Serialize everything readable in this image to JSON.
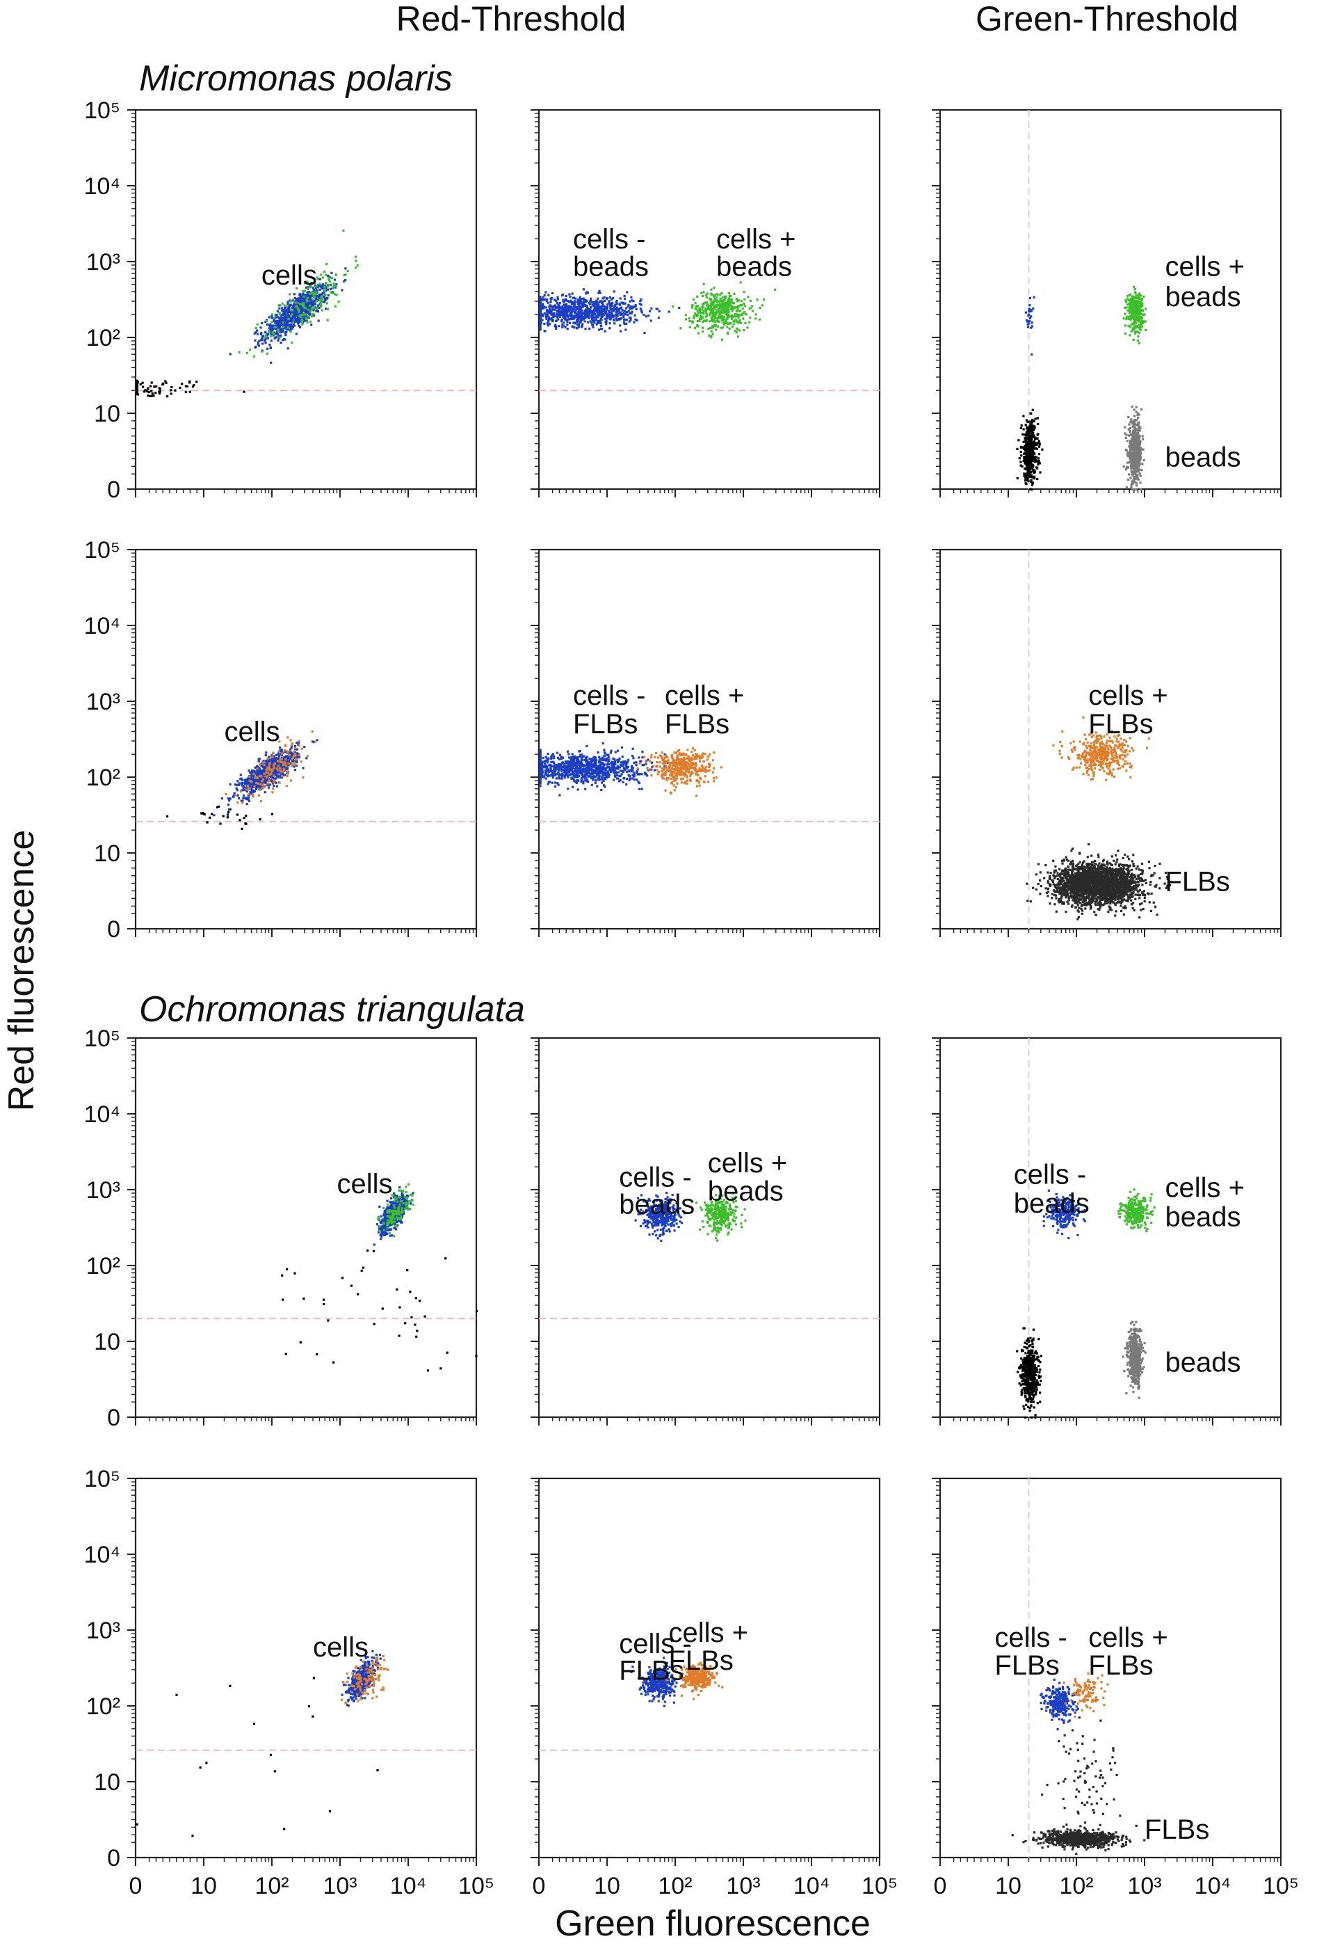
{
  "figure": {
    "column_headers": [
      "Red-Threshold",
      "Green-Threshold"
    ],
    "section_titles": [
      "Micromonas polaris",
      "Ochromonas triangulata"
    ],
    "y_axis_label": "Red fluorescence",
    "x_axis_label": "Green fluorescence"
  },
  "colors": {
    "cells_minus": "#1a3fc4",
    "beads_plus": "#3cbf2a",
    "flbs_plus": "#e07d2a",
    "beads_only": "#7a7a7a",
    "flbs_only": "#2a2a2a",
    "background_events": "#000000",
    "threshold_line": "#f0b9b9"
  },
  "chart_data": {
    "type": "scatter",
    "axis_scale": "biexponential (0, 10, 10^2 ... 10^5)",
    "x_ticks": [
      "0",
      "10",
      "10²",
      "10³",
      "10⁴",
      "10⁵"
    ],
    "y_ticks": [
      "0",
      "10",
      "10²",
      "10³",
      "10⁴",
      "10⁵"
    ],
    "xlim": [
      0,
      100000
    ],
    "ylim": [
      0,
      100000
    ],
    "grid": false,
    "panels": [
      {
        "row": 0,
        "col": 0,
        "threshold": "Red-Threshold",
        "prey": "beads",
        "hline": 20,
        "labels": [
          {
            "text": "cells",
            "x": 70,
            "y": 500
          }
        ],
        "populations": [
          {
            "name": "events",
            "color": "background_events",
            "n": 90,
            "cx": 0.5,
            "sx": 0.55,
            "cy": 22,
            "sy": 0.06
          },
          {
            "name": "cells",
            "color": "cells_minus",
            "n": 750,
            "cx": 220,
            "sx": 0.24,
            "cy": 220,
            "sy": 0.18,
            "rho": 0.82
          },
          {
            "name": "cells + beads",
            "color": "beads_plus",
            "n": 160,
            "cx": 320,
            "sx": 0.32,
            "cy": 300,
            "sy": 0.28,
            "rho": 0.8
          }
        ]
      },
      {
        "row": 0,
        "col": 1,
        "threshold": "Red-Threshold",
        "prey": "beads",
        "hline": 20,
        "labels": [
          {
            "text": "cells -",
            "x": 5,
            "y": 1500
          },
          {
            "text": "beads",
            "x": 5,
            "y": 650
          },
          {
            "text": "cells +",
            "x": 400,
            "y": 1500
          },
          {
            "text": "beads",
            "x": 400,
            "y": 650
          }
        ],
        "populations": [
          {
            "name": "cells - beads",
            "color": "cells_minus",
            "n": 900,
            "cx": 6,
            "sx": 0.45,
            "cy": 230,
            "sy": 0.1
          },
          {
            "name": "cells + beads",
            "color": "beads_plus",
            "n": 420,
            "cx": 450,
            "sx": 0.22,
            "cy": 230,
            "sy": 0.13
          }
        ]
      },
      {
        "row": 0,
        "col": 2,
        "threshold": "Green-Threshold",
        "prey": "beads",
        "vline": 20,
        "labels": [
          {
            "text": "cells +",
            "x": 2000,
            "y": 650
          },
          {
            "text": "beads",
            "x": 2000,
            "y": 260
          },
          {
            "text": "beads",
            "x": 2000,
            "y": 3
          }
        ],
        "populations": [
          {
            "name": "background",
            "color": "background_events",
            "n": 450,
            "cx": 20,
            "sx": 0.06,
            "cy": 5,
            "sy": 0.2
          },
          {
            "name": "cells",
            "color": "cells_minus",
            "n": 25,
            "cx": 20,
            "sx": 0.03,
            "cy": 180,
            "sy": 0.15
          },
          {
            "name": "beads",
            "color": "beads_only",
            "n": 450,
            "cx": 700,
            "sx": 0.05,
            "cy": 5,
            "sy": 0.2
          },
          {
            "name": "cells + beads",
            "color": "beads_plus",
            "n": 320,
            "cx": 700,
            "sx": 0.06,
            "cy": 230,
            "sy": 0.12
          }
        ]
      },
      {
        "row": 1,
        "col": 0,
        "threshold": "Red-Threshold",
        "prey": "FLBs",
        "hline": 26,
        "labels": [
          {
            "text": "cells",
            "x": 20,
            "y": 300
          }
        ],
        "populations": [
          {
            "name": "events",
            "color": "background_events",
            "n": 25,
            "cx": 20,
            "sx": 0.35,
            "cy": 30,
            "sy": 0.08
          },
          {
            "name": "cells",
            "color": "cells_minus",
            "n": 700,
            "cx": 85,
            "sx": 0.22,
            "cy": 120,
            "sy": 0.15,
            "rho": 0.8
          },
          {
            "name": "cells + FLBs",
            "color": "flbs_plus",
            "n": 140,
            "cx": 110,
            "sx": 0.25,
            "cy": 140,
            "sy": 0.18,
            "rho": 0.75
          }
        ]
      },
      {
        "row": 1,
        "col": 1,
        "threshold": "Red-Threshold",
        "prey": "FLBs",
        "hline": 26,
        "labels": [
          {
            "text": "cells -",
            "x": 5,
            "y": 900
          },
          {
            "text": "FLBs",
            "x": 5,
            "y": 380
          },
          {
            "text": "cells +",
            "x": 70,
            "y": 900
          },
          {
            "text": "FLBs",
            "x": 70,
            "y": 380
          }
        ],
        "populations": [
          {
            "name": "cells - FLBs",
            "color": "cells_minus",
            "n": 900,
            "cx": 6,
            "sx": 0.45,
            "cy": 135,
            "sy": 0.1
          },
          {
            "name": "cells + FLBs",
            "color": "flbs_plus",
            "n": 420,
            "cx": 120,
            "sx": 0.22,
            "cy": 140,
            "sy": 0.11
          }
        ]
      },
      {
        "row": 1,
        "col": 2,
        "threshold": "Green-Threshold",
        "prey": "FLBs",
        "vline": 20,
        "labels": [
          {
            "text": "cells +",
            "x": 150,
            "y": 900
          },
          {
            "text": "FLBs",
            "x": 150,
            "y": 380
          },
          {
            "text": "FLBs",
            "x": 2000,
            "y": 5
          }
        ],
        "populations": [
          {
            "name": "FLBs",
            "color": "flbs_only",
            "n": 2200,
            "cx": 200,
            "sx": 0.32,
            "cy": 6,
            "sy": 0.14
          },
          {
            "name": "cells + FLBs",
            "color": "flbs_plus",
            "n": 380,
            "cx": 220,
            "sx": 0.22,
            "cy": 200,
            "sy": 0.13
          }
        ]
      },
      {
        "row": 2,
        "col": 0,
        "threshold": "Red-Threshold",
        "prey": "beads",
        "hline": 20,
        "labels": [
          {
            "text": "cells",
            "x": 900,
            "y": 900
          }
        ],
        "populations": [
          {
            "name": "events",
            "color": "background_events",
            "n": 40,
            "cx": 3000,
            "sx": 0.9,
            "cy": 25,
            "sy": 0.4
          },
          {
            "name": "cells",
            "color": "cells_minus",
            "n": 520,
            "cx": 6000,
            "sx": 0.1,
            "cy": 500,
            "sy": 0.12,
            "rho": 0.7
          },
          {
            "name": "cells + beads",
            "color": "beads_plus",
            "n": 120,
            "cx": 6500,
            "sx": 0.12,
            "cy": 550,
            "sy": 0.14,
            "rho": 0.6
          }
        ]
      },
      {
        "row": 2,
        "col": 1,
        "threshold": "Red-Threshold",
        "prey": "beads",
        "hline": 20,
        "labels": [
          {
            "text": "cells -",
            "x": 15,
            "y": 1100
          },
          {
            "text": "beads",
            "x": 15,
            "y": 480
          },
          {
            "text": "cells +",
            "x": 300,
            "y": 1700
          },
          {
            "text": "beads",
            "x": 300,
            "y": 720
          }
        ],
        "populations": [
          {
            "name": "cells - beads",
            "color": "cells_minus",
            "n": 380,
            "cx": 60,
            "sx": 0.12,
            "cy": 480,
            "sy": 0.11
          },
          {
            "name": "cells + beads",
            "color": "beads_plus",
            "n": 280,
            "cx": 450,
            "sx": 0.12,
            "cy": 480,
            "sy": 0.11
          }
        ]
      },
      {
        "row": 2,
        "col": 2,
        "threshold": "Green-Threshold",
        "prey": "beads",
        "vline": 20,
        "labels": [
          {
            "text": "cells -",
            "x": 12,
            "y": 1200
          },
          {
            "text": "beads",
            "x": 12,
            "y": 500
          },
          {
            "text": "cells +",
            "x": 2000,
            "y": 800
          },
          {
            "text": "beads",
            "x": 2000,
            "y": 330
          },
          {
            "text": "beads",
            "x": 2000,
            "y": 6
          }
        ],
        "populations": [
          {
            "name": "background",
            "color": "background_events",
            "n": 500,
            "cx": 20,
            "sx": 0.06,
            "cy": 6,
            "sy": 0.2
          },
          {
            "name": "cells - beads",
            "color": "cells_minus",
            "n": 230,
            "cx": 65,
            "sx": 0.12,
            "cy": 520,
            "sy": 0.1
          },
          {
            "name": "cells + beads",
            "color": "beads_plus",
            "n": 250,
            "cx": 700,
            "sx": 0.1,
            "cy": 520,
            "sy": 0.1
          },
          {
            "name": "beads",
            "color": "beads_only",
            "n": 500,
            "cx": 700,
            "sx": 0.05,
            "cy": 8,
            "sy": 0.17
          }
        ]
      },
      {
        "row": 3,
        "col": 0,
        "threshold": "Red-Threshold",
        "prey": "FLBs",
        "hline": 26,
        "labels": [
          {
            "text": "cells",
            "x": 400,
            "y": 450
          }
        ],
        "populations": [
          {
            "name": "events",
            "color": "background_events",
            "n": 15,
            "cx": 30,
            "sx": 0.8,
            "cy": 50,
            "sy": 0.6
          },
          {
            "name": "cells",
            "color": "cells_minus",
            "n": 420,
            "cx": 2000,
            "sx": 0.1,
            "cy": 230,
            "sy": 0.12,
            "rho": 0.6
          },
          {
            "name": "cells + FLBs",
            "color": "flbs_plus",
            "n": 110,
            "cx": 2400,
            "sx": 0.14,
            "cy": 240,
            "sy": 0.15,
            "rho": 0.5
          }
        ]
      },
      {
        "row": 3,
        "col": 1,
        "threshold": "Red-Threshold",
        "prey": "FLBs",
        "hline": 26,
        "labels": [
          {
            "text": "cells -",
            "x": 15,
            "y": 500
          },
          {
            "text": "FLBs",
            "x": 15,
            "y": 220
          },
          {
            "text": "cells +",
            "x": 80,
            "y": 700
          },
          {
            "text": "FLBs",
            "x": 80,
            "y": 300
          }
        ],
        "populations": [
          {
            "name": "cells - FLBs",
            "color": "cells_minus",
            "n": 380,
            "cx": 55,
            "sx": 0.11,
            "cy": 210,
            "sy": 0.1
          },
          {
            "name": "cells + FLBs",
            "color": "flbs_plus",
            "n": 320,
            "cx": 200,
            "sx": 0.12,
            "cy": 240,
            "sy": 0.08
          }
        ]
      },
      {
        "row": 3,
        "col": 2,
        "threshold": "Green-Threshold",
        "prey": "FLBs",
        "vline": 20,
        "labels": [
          {
            "text": "cells -",
            "x": 8,
            "y": 600
          },
          {
            "text": "FLBs",
            "x": 8,
            "y": 260
          },
          {
            "text": "cells +",
            "x": 150,
            "y": 600
          },
          {
            "text": "FLBs",
            "x": 150,
            "y": 260
          },
          {
            "text": "FLBs",
            "x": 1000,
            "y": 2.5
          }
        ],
        "populations": [
          {
            "name": "cells - FLBs",
            "color": "cells_minus",
            "n": 260,
            "cx": 55,
            "sx": 0.11,
            "cy": 110,
            "sy": 0.11
          },
          {
            "name": "cells + FLBs",
            "color": "flbs_plus",
            "n": 90,
            "cx": 140,
            "sx": 0.13,
            "cy": 160,
            "sy": 0.13
          },
          {
            "name": "FLBs",
            "color": "flbs_only",
            "n": 800,
            "cx": 110,
            "sx": 0.28,
            "cy": 2.6,
            "sy": 0.05
          },
          {
            "name": "scatter",
            "color": "flbs_only",
            "n": 80,
            "cx": 150,
            "sx": 0.25,
            "cy": 10,
            "sy": 0.4
          }
        ]
      }
    ]
  }
}
